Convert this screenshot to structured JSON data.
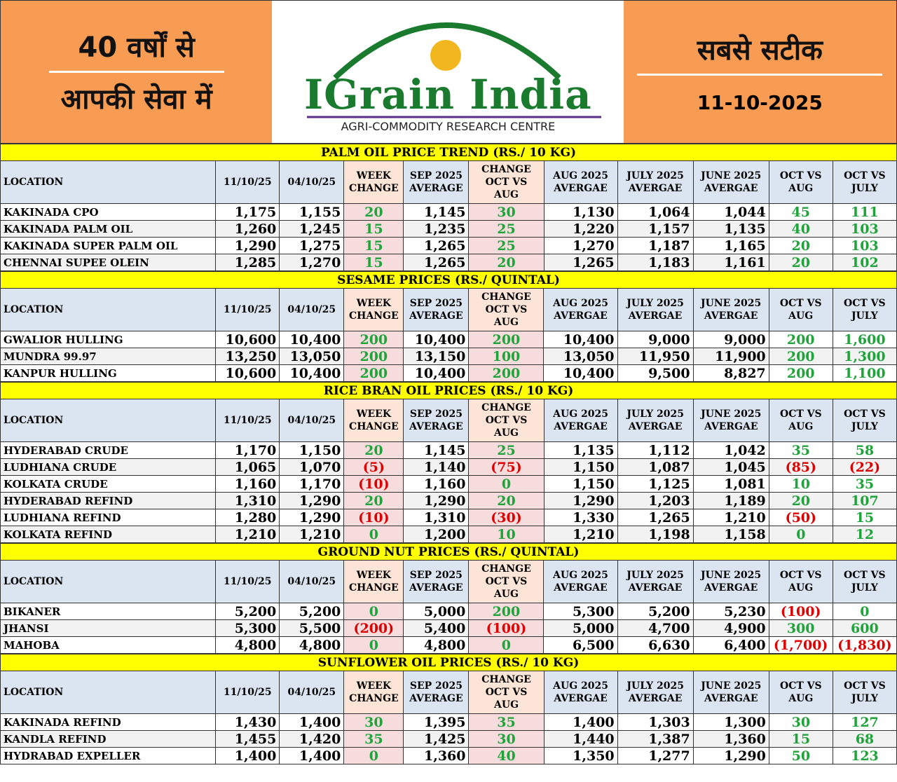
{
  "header": {
    "left_line1": "40 वर्षों से",
    "left_line2": "आपकी सेवा में",
    "brand": "IGrain India",
    "tagline": "AGRI-COMMODITY RESEARCH CENTRE",
    "right_line1": "सबसे सटीक",
    "date": "11-10-2025"
  },
  "sections": [
    {
      "title": "PALM OIL PRICE TREND (RS./ 10 KG)",
      "columns": [
        "LOCATION",
        "11/10/25",
        "04/10/25",
        "WEEK CHANGE",
        "SEP 2025 AVERAGE",
        "CHANGE OCT VS AUG",
        "AUG 2025 AVERGAE",
        "JULY 2025 AVERGAE",
        "JUNE 2025 AVERGAE",
        "OCT VS AUG",
        "OCT VS JULY"
      ],
      "rows": [
        [
          "KAKINADA CPO",
          "1,175",
          "1,155",
          "20",
          "1,145",
          "30",
          "1,130",
          "1,064",
          "1,044",
          "45",
          "111"
        ],
        [
          "KAKINADA PALM OIL",
          "1,260",
          "1,245",
          "15",
          "1,235",
          "25",
          "1,220",
          "1,157",
          "1,135",
          "40",
          "103"
        ],
        [
          "KAKINADA SUPER PALM OIL",
          "1,290",
          "1,275",
          "15",
          "1,265",
          "25",
          "1,270",
          "1,187",
          "1,165",
          "20",
          "103"
        ],
        [
          "CHENNAI SUPEE OLEIN",
          "1,285",
          "1,270",
          "15",
          "1,265",
          "20",
          "1,265",
          "1,183",
          "1,161",
          "20",
          "102"
        ]
      ]
    },
    {
      "title": "SESAME PRICES (RS./ QUINTAL)",
      "columns": [
        "LOCATION",
        "11/10/25",
        "04/10/25",
        "WEEK CHANGE",
        "SEP 2025 AVERAGE",
        "CHANGE OCT VS AUG",
        "AUG 2025 AVERGAE",
        "JULY 2025 AVERGAE",
        "JUNE 2025 AVERGAE",
        "OCT VS AUG",
        "OCT VS JULY"
      ],
      "rows": [
        [
          "GWALIOR HULLING",
          "10,600",
          "10,400",
          "200",
          "10,400",
          "200",
          "10,400",
          "9,000",
          "9,000",
          "200",
          "1,600"
        ],
        [
          "MUNDRA 99.97",
          "13,250",
          "13,050",
          "200",
          "13,150",
          "100",
          "13,050",
          "11,950",
          "11,900",
          "200",
          "1,300"
        ],
        [
          "KANPUR HULLING",
          "10,600",
          "10,400",
          "200",
          "10,400",
          "200",
          "10,400",
          "9,500",
          "8,827",
          "200",
          "1,100"
        ]
      ]
    },
    {
      "title": "RICE BRAN OIL PRICES (RS./ 10 KG)",
      "columns": [
        "LOCATION",
        "11/10/25",
        "04/10/25",
        "WEEK CHANGE",
        "SEP 2025 AVERAGE",
        "CHANGE OCT VS AUG",
        "AUG 2025 AVERGAE",
        "JULY 2025 AVERGAE",
        "JUNE 2025 AVERGAE",
        "OCT VS AUG",
        "OCT VS JULY"
      ],
      "rows": [
        [
          "HYDERABAD CRUDE",
          "1,170",
          "1,150",
          "20",
          "1,145",
          "25",
          "1,135",
          "1,112",
          "1,042",
          "35",
          "58"
        ],
        [
          "LUDHIANA CRUDE",
          "1,065",
          "1,070",
          "(5)",
          "1,140",
          "(75)",
          "1,150",
          "1,087",
          "1,045",
          "(85)",
          "(22)"
        ],
        [
          "KOLKATA CRUDE",
          "1,160",
          "1,170",
          "(10)",
          "1,160",
          "0",
          "1,150",
          "1,125",
          "1,081",
          "10",
          "35"
        ],
        [
          "HYDERABAD REFIND",
          "1,310",
          "1,290",
          "20",
          "1,290",
          "20",
          "1,290",
          "1,203",
          "1,189",
          "20",
          "107"
        ],
        [
          "LUDHIANA REFIND",
          "1,280",
          "1,290",
          "(10)",
          "1,310",
          "(30)",
          "1,330",
          "1,265",
          "1,210",
          "(50)",
          "15"
        ],
        [
          "KOLKATA REFIND",
          "1,210",
          "1,210",
          "0",
          "1,200",
          "10",
          "1,210",
          "1,198",
          "1,158",
          "0",
          "12"
        ]
      ]
    },
    {
      "title": "GROUND NUT PRICES (RS./ QUINTAL)",
      "columns": [
        "LOCATION",
        "11/10/25",
        "04/10/25",
        "WEEK CHANGE",
        "SEP 2025 AVERAGE",
        "CHANGE OCT VS AUG",
        "AUG 2025 AVERGAE",
        "JULY 2025 AVERGAE",
        "JUNE 2025 AVERGAE",
        "OCT VS AUG",
        "OCT VS JULY"
      ],
      "rows": [
        [
          "BIKANER",
          "5,200",
          "5,200",
          "0",
          "5,000",
          "200",
          "5,300",
          "5,200",
          "5,230",
          "(100)",
          "0"
        ],
        [
          "JHANSI",
          "5,300",
          "5,500",
          "(200)",
          "5,400",
          "(100)",
          "5,000",
          "4,700",
          "4,900",
          "300",
          "600"
        ],
        [
          "MAHOBA",
          "4,800",
          "4,800",
          "0",
          "4,800",
          "0",
          "6,500",
          "6,630",
          "6,400",
          "(1,700)",
          "(1,830)"
        ]
      ]
    },
    {
      "title": "SUNFLOWER OIL PRICES (RS./ 10 KG)",
      "columns": [
        "LOCATION",
        "11/10/25",
        "04/10/25",
        "WEEK CHANGE",
        "SEP 2025 AVERAGE",
        "CHANGE OCT VS AUG",
        "AUG 2025 AVERGAE",
        "JULY 2025 AVERGAE",
        "JUNE 2025 AVERGAE",
        "OCT VS AUG",
        "OCT VS JULY"
      ],
      "rows": [
        [
          "KAKINADA REFIND",
          "1,430",
          "1,400",
          "30",
          "1,395",
          "35",
          "1,400",
          "1,303",
          "1,300",
          "30",
          "127"
        ],
        [
          "KANDLA REFIND",
          "1,455",
          "1,420",
          "35",
          "1,425",
          "30",
          "1,440",
          "1,387",
          "1,360",
          "15",
          "68"
        ],
        [
          "HYDRABAD EXPELLER",
          "1,400",
          "1,400",
          "0",
          "1,360",
          "40",
          "1,350",
          "1,277",
          "1,290",
          "50",
          "123"
        ]
      ]
    }
  ]
}
